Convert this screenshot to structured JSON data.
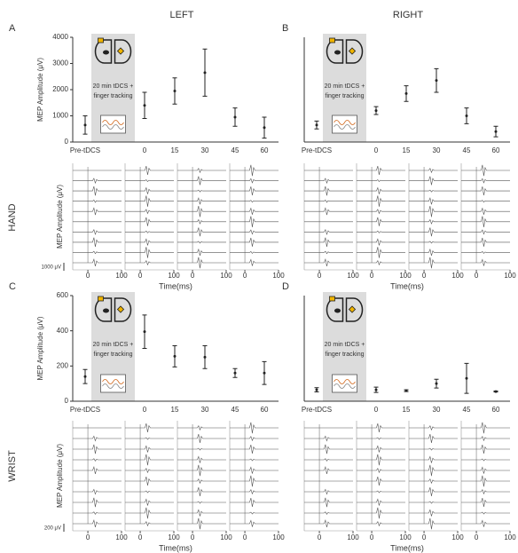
{
  "column_titles": [
    "LEFT",
    "RIGHT"
  ],
  "row_titles": [
    "HAND",
    "WRIST"
  ],
  "chart_data": [
    {
      "type": "errorbar",
      "panel_label": "A",
      "ylabel": "MEP Amplitude (μV)",
      "inset_text": [
        "20 min tDCS +",
        "finger tracking"
      ],
      "categories": [
        "Pre-tDCS",
        "0",
        "15",
        "30",
        "45",
        "60"
      ],
      "values": [
        650,
        1400,
        1950,
        2650,
        950,
        550
      ],
      "errors": [
        350,
        500,
        500,
        900,
        350,
        400
      ],
      "ylim": [
        0,
        4000
      ],
      "yticks": [
        0,
        1000,
        2000,
        3000,
        4000
      ],
      "color": "#222222",
      "traces": {
        "ylabel": "MEP Amplitude (μV)",
        "scale_label": "1000 μV",
        "xlabel": "Time(ms)",
        "xlim": [
          -45,
          100
        ],
        "xticks": [
          0,
          100
        ]
      }
    },
    {
      "type": "errorbar",
      "panel_label": "B",
      "inset_text": [
        "20 min tDCS +",
        "finger tracking"
      ],
      "categories": [
        "Pre-tDCS",
        "0",
        "15",
        "30",
        "45",
        "60"
      ],
      "values": [
        650,
        1200,
        1850,
        2350,
        1000,
        400
      ],
      "errors": [
        150,
        150,
        300,
        450,
        300,
        200
      ],
      "ylim": [
        0,
        4000
      ],
      "color": "#222222",
      "traces": {
        "xlabel": "Time(ms)",
        "xlim": [
          -45,
          100
        ],
        "xticks": [
          0,
          100
        ]
      }
    },
    {
      "type": "errorbar",
      "panel_label": "C",
      "ylabel": "MEP Amplitude (μV)",
      "inset_text": [
        "20 min tDCS +",
        "finger tracking"
      ],
      "categories": [
        "Pre-tDCS",
        "0",
        "15",
        "30",
        "45",
        "60"
      ],
      "values": [
        140,
        395,
        255,
        250,
        160,
        160
      ],
      "errors": [
        40,
        95,
        60,
        65,
        25,
        65
      ],
      "ylim": [
        0,
        600
      ],
      "yticks": [
        0,
        200,
        400,
        600
      ],
      "color": "#222222",
      "traces": {
        "ylabel": "MEP Amplitude (μV)",
        "scale_label": "200 μV",
        "xlabel": "Time(ms)",
        "xlim": [
          -45,
          100
        ],
        "xticks": [
          0,
          100
        ]
      }
    },
    {
      "type": "errorbar",
      "panel_label": "D",
      "inset_text": [
        "20 min tDCS +",
        "finger tracking"
      ],
      "categories": [
        "Pre-tDCS",
        "0",
        "15",
        "30",
        "45",
        "60"
      ],
      "values": [
        65,
        65,
        60,
        100,
        130,
        55
      ],
      "errors": [
        12,
        15,
        5,
        25,
        85,
        3
      ],
      "ylim": [
        0,
        600
      ],
      "color": "#222222",
      "traces": {
        "xlabel": "Time(ms)",
        "xlim": [
          -45,
          100
        ],
        "xticks": [
          0,
          100
        ]
      }
    }
  ]
}
